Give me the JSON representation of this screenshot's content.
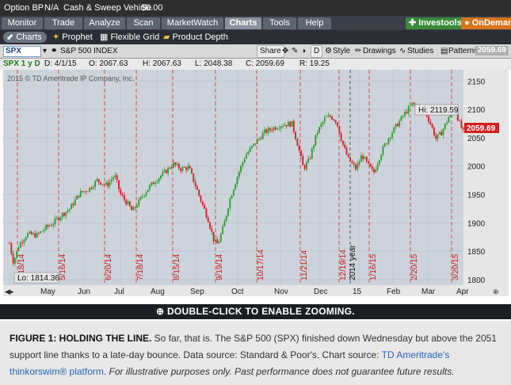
{
  "topbar": {
    "option_bp_label": "Option BP",
    "option_bp_value": "N/A",
    "cash_label": "Cash & Sweep Vehicle",
    "cash_value": "$0.00"
  },
  "menu": {
    "tabs": [
      "Monitor",
      "Trade",
      "Analyze",
      "Scan",
      "MarketWatch",
      "Charts",
      "Tools",
      "Help"
    ],
    "active": "Charts",
    "investools": "Investools",
    "ondemand": "OnDemand"
  },
  "subnav": {
    "items": [
      "Charts",
      "Prophet",
      "Flexible Grid",
      "Product Depth"
    ],
    "active": "Charts"
  },
  "toolbar": {
    "symbol": "SPX",
    "name": "S&P 500 INDEX",
    "share": "Share",
    "style": "Style",
    "drawings": "Drawings",
    "studies": "Studies",
    "patterns": "Patterns",
    "price": "2059.69"
  },
  "ohlc": {
    "symbol": "SPX 1 y D",
    "d": "D: 4/1/15",
    "o": "O: 2067.63",
    "h": "H: 2067.63",
    "l": "L: 2048.38",
    "c": "C: 2059.69",
    "r": "R: 19.25"
  },
  "chart_data": {
    "type": "candlestick",
    "watermark": "2015 © TD Ameritrade IP Company, Inc.",
    "yticks": [
      1800,
      1850,
      1900,
      1950,
      2000,
      2050,
      2100,
      2150
    ],
    "ylim": [
      1790,
      2170
    ],
    "months": [
      "May",
      "Jun",
      "Jul",
      "Aug",
      "Sep",
      "Oct",
      "Nov",
      "Dec",
      "15",
      "Feb",
      "Mar",
      "Apr"
    ],
    "events": [
      "4/18/14",
      "5/16/14",
      "6/20/14",
      "7/18/14",
      "8/15/14",
      "9/19/14",
      "10/17/14",
      "11/21/14",
      "12/19/14",
      "1/16/15",
      "2/20/15",
      "3/20/15"
    ],
    "year_label": "2014 year",
    "high_label": "Hi: 2119.59",
    "low_label": "Lo: 1814.36",
    "last_price": "2059.69",
    "anchors": [
      [
        0,
        1864
      ],
      [
        4,
        1830
      ],
      [
        10,
        1862
      ],
      [
        18,
        1880
      ],
      [
        28,
        1878
      ],
      [
        38,
        1892
      ],
      [
        45,
        1900
      ],
      [
        52,
        1912
      ],
      [
        62,
        1925
      ],
      [
        72,
        1952
      ],
      [
        82,
        1960
      ],
      [
        90,
        1975
      ],
      [
        100,
        1966
      ],
      [
        108,
        1984
      ],
      [
        114,
        1950
      ],
      [
        122,
        1932
      ],
      [
        126,
        1920
      ],
      [
        132,
        1935
      ],
      [
        140,
        1956
      ],
      [
        150,
        1975
      ],
      [
        160,
        1990
      ],
      [
        168,
        2004
      ],
      [
        176,
        1995
      ],
      [
        184,
        1998
      ],
      [
        190,
        1970
      ],
      [
        196,
        1942
      ],
      [
        204,
        1906
      ],
      [
        210,
        1868
      ],
      [
        214,
        1862
      ],
      [
        220,
        1895
      ],
      [
        226,
        1940
      ],
      [
        234,
        1982
      ],
      [
        242,
        2018
      ],
      [
        252,
        2040
      ],
      [
        262,
        2060
      ],
      [
        272,
        2068
      ],
      [
        280,
        2073
      ],
      [
        290,
        2075
      ],
      [
        296,
        2038
      ],
      [
        302,
        1995
      ],
      [
        308,
        2012
      ],
      [
        316,
        2060
      ],
      [
        324,
        2084
      ],
      [
        330,
        2088
      ],
      [
        336,
        2078
      ],
      [
        342,
        2040
      ],
      [
        348,
        2012
      ],
      [
        356,
        1995
      ],
      [
        362,
        2020
      ],
      [
        368,
        2002
      ],
      [
        374,
        1988
      ],
      [
        382,
        2025
      ],
      [
        390,
        2052
      ],
      [
        398,
        2073
      ],
      [
        406,
        2093
      ],
      [
        414,
        2110
      ],
      [
        420,
        2104
      ],
      [
        426,
        2100
      ],
      [
        432,
        2077
      ],
      [
        438,
        2048
      ],
      [
        444,
        2060
      ],
      [
        450,
        2082
      ],
      [
        456,
        2110
      ],
      [
        462,
        2076
      ],
      [
        466,
        2060
      ]
    ]
  },
  "zoom_text": "DOUBLE-CLICK TO ENABLE ZOOMING.",
  "caption": {
    "title": "FIGURE 1: HOLDING THE LINE.",
    "text": " So far, that is. The S&P 500 (SPX) finished down Wednesday but above the 2051 support line thanks to a late-day bounce. Data source: Standard & Poor's. Chart source: ",
    "link": "TD Ameritrade's thinkorswim® platform",
    "disclaimer": " For illustrative purposes only. Past performance does not guarantee future results."
  }
}
